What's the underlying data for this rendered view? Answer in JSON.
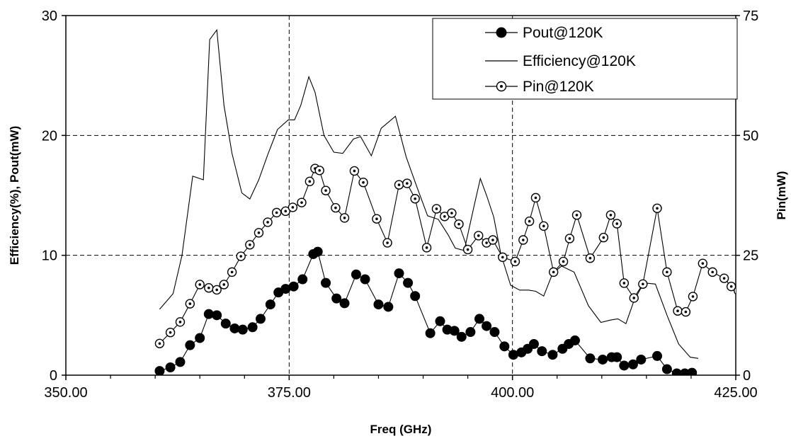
{
  "chart_data": {
    "type": "line",
    "xlabel": "Freq (GHz)",
    "ylabel_left": "Efficiency(%), Pout(mW)",
    "ylabel_right": "Pin(mW)",
    "xlim": [
      350,
      425
    ],
    "ylim_left": [
      0,
      30
    ],
    "ylim_right": [
      0,
      75
    ],
    "x_ticks": [
      350,
      375,
      400,
      425
    ],
    "x_tick_labels": [
      "350.00",
      "375.00",
      "400.00",
      "425.00"
    ],
    "y_left_ticks": [
      0,
      10,
      20,
      30
    ],
    "y_left_tick_labels": [
      "0",
      "10",
      "20",
      "30"
    ],
    "y_right_ticks": [
      0,
      25,
      50,
      75
    ],
    "y_right_tick_labels": [
      "0",
      "25",
      "50",
      "75"
    ],
    "grid": "dashed lines at major ticks",
    "legend_position": "top-right",
    "series": [
      {
        "name": "Pout@120K",
        "axis": "left",
        "marker": "filled-circle",
        "x": [
          360.5,
          361.7,
          362.8,
          363.9,
          365,
          366,
          366.9,
          367.9,
          368.9,
          369.8,
          370.9,
          371.8,
          372.9,
          373.8,
          374.6,
          375.5,
          376.5,
          377.7,
          378.2,
          379.1,
          380.3,
          381.2,
          382.5,
          383.5,
          385,
          386.1,
          387.3,
          388.3,
          389.1,
          390.8,
          391.9,
          392.7,
          393.5,
          394.3,
          395.3,
          396.3,
          397.1,
          398,
          399.1,
          400.1,
          401,
          401.7,
          402.4,
          403.3,
          404.5,
          405.6,
          406.3,
          407,
          408.7,
          410.1,
          411.1,
          411.7,
          412.5,
          413.5,
          414.4,
          416.2,
          417.3,
          418.4,
          419.3,
          420.1
        ],
        "y": [
          0.35,
          0.65,
          1.1,
          2.5,
          3.1,
          5.1,
          5.0,
          4.3,
          3.9,
          3.8,
          4.0,
          4.7,
          5.9,
          6.9,
          7.2,
          7.4,
          8.0,
          10.1,
          10.3,
          7.7,
          6.4,
          6.0,
          8.4,
          8.0,
          5.9,
          5.7,
          8.5,
          7.7,
          6.6,
          3.5,
          4.5,
          3.8,
          3.7,
          3.2,
          3.6,
          4.7,
          4.1,
          3.6,
          2.4,
          1.7,
          1.9,
          2.2,
          2.6,
          2.0,
          1.7,
          2.2,
          2.6,
          2.9,
          1.4,
          1.3,
          1.5,
          1.5,
          0.8,
          0.9,
          1.3,
          1.6,
          0.5,
          0.15,
          0.15,
          0.2
        ]
      },
      {
        "name": "Efficiency@120K",
        "axis": "left",
        "marker": "none",
        "x": [
          360.5,
          362,
          363,
          364.2,
          365.4,
          366.1,
          366.9,
          367.7,
          368.6,
          369.7,
          370.6,
          371.6,
          372.6,
          373.7,
          374.9,
          375.6,
          376.3,
          377.2,
          377.9,
          378.9,
          380,
          381,
          382.2,
          383,
          384.2,
          385.3,
          386.9,
          388.1,
          389.3,
          390.5,
          391.7,
          392.8,
          393.6,
          394.6,
          395.7,
          396.4,
          397.1,
          397.9,
          398.7,
          399.8,
          400.8,
          401.8,
          402.6,
          403.5,
          404.5,
          405.5,
          406.9,
          408.5,
          409.9,
          411,
          411.8,
          412.7,
          413.6,
          414.7,
          416,
          417.3,
          418.6,
          419.9,
          420.8
        ],
        "y": [
          5.5,
          6.8,
          10,
          16.6,
          16.3,
          28,
          28.8,
          22.5,
          18.5,
          15.2,
          14.7,
          16.3,
          18.4,
          20.5,
          21.3,
          21.3,
          22.5,
          24.9,
          23.6,
          20,
          18.6,
          18.5,
          19.7,
          19.9,
          18.3,
          20.6,
          21.6,
          18.2,
          15.7,
          13.3,
          13.0,
          11.7,
          10.6,
          10.4,
          14.1,
          16.4,
          15.0,
          13.2,
          10.1,
          7.5,
          7.1,
          7.1,
          7.0,
          6.6,
          8.5,
          9.1,
          8.6,
          5.8,
          4.4,
          4.6,
          4.7,
          4.3,
          6.2,
          7.7,
          7.6,
          5.0,
          2.6,
          1.5,
          1.4
        ]
      },
      {
        "name": "Pin@120K",
        "axis": "right",
        "marker": "open-circle",
        "x": [
          360.5,
          361.7,
          362.8,
          363.9,
          365,
          366,
          366.9,
          367.7,
          368.6,
          369.6,
          370.6,
          371.6,
          372.6,
          373.6,
          374.6,
          375.4,
          376.4,
          377.3,
          377.9,
          378.4,
          379.1,
          380.2,
          381.2,
          382.3,
          383.3,
          384.8,
          386,
          387.3,
          388.2,
          389.1,
          390.4,
          391.5,
          392.4,
          393.2,
          394,
          395,
          396.2,
          397.1,
          397.8,
          398.9,
          400.3,
          401.2,
          401.9,
          402.6,
          403.5,
          404.6,
          405.7,
          406.4,
          407.2,
          408.7,
          410.2,
          411,
          411.7,
          412.5,
          413.6,
          414.6,
          416.2,
          417.3,
          418.5,
          419.4,
          420.2,
          421.3,
          422.4,
          423.7,
          424.5,
          425.3
        ],
        "y": [
          6.6,
          8.9,
          11.1,
          14.9,
          18.9,
          18.2,
          17.8,
          18.9,
          21.5,
          24.8,
          27.2,
          29.7,
          31.9,
          33.9,
          34.2,
          35,
          36,
          40.4,
          43.1,
          42.7,
          38.5,
          34.9,
          32.8,
          42.6,
          40.2,
          32.6,
          27.6,
          39.7,
          40,
          36.8,
          26.6,
          34.7,
          33.1,
          33.8,
          31.5,
          26.2,
          29.1,
          27.6,
          28.2,
          24.6,
          23.7,
          28.2,
          32.1,
          37,
          31.1,
          21.5,
          23.7,
          28.5,
          33.4,
          24.4,
          28.7,
          33.4,
          31.6,
          19.2,
          16.1,
          19,
          34.8,
          21.5,
          13.4,
          13.2,
          16.4,
          23.3,
          21.5,
          20.2,
          18.5,
          17.6
        ]
      }
    ]
  }
}
